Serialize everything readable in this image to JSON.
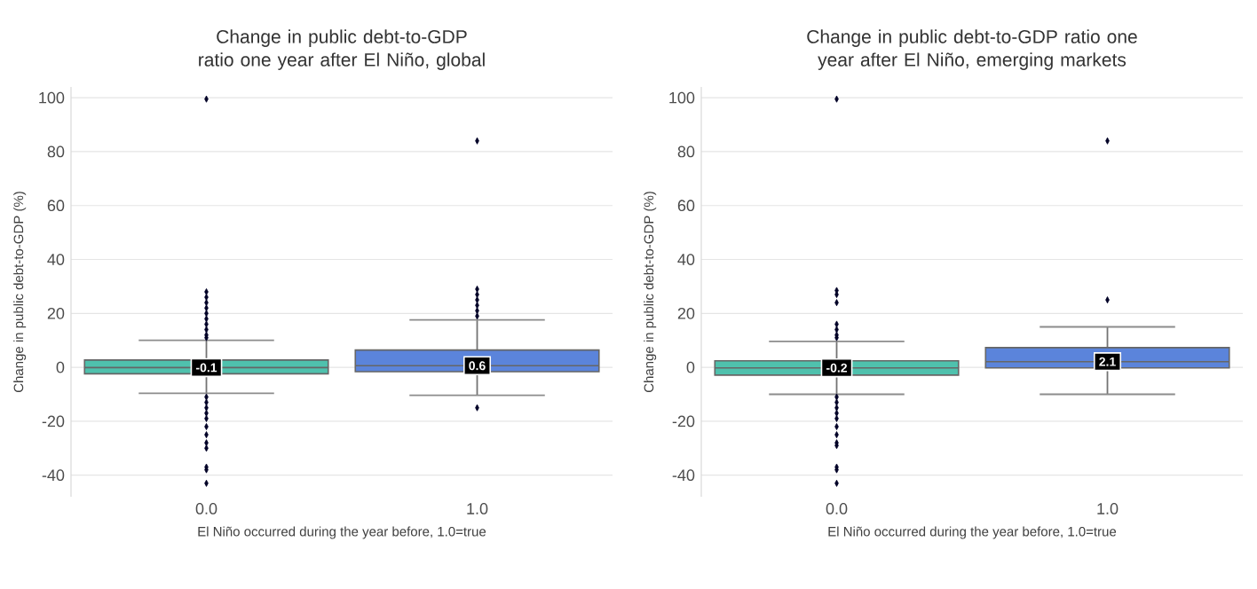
{
  "chart_data": [
    {
      "type": "box",
      "title": "Change in public debt-to-GDP ratio one year after El Niño, global",
      "xlabel": "El Niño occurred during the year before, 1.0=true",
      "ylabel": "Change in public debt-to-GDP (%)",
      "categories": [
        "0.0",
        "1.0"
      ],
      "boxes": [
        {
          "low": -9.6,
          "q1": -2.4,
          "median": -0.1,
          "q3": 2.7,
          "high": 10,
          "outliers": [
            99.5,
            28,
            26,
            24,
            22,
            20,
            18,
            16,
            14,
            12,
            11,
            -11,
            -13,
            -15,
            -17,
            -19,
            -22,
            -25,
            -28,
            -30,
            -37,
            -38,
            -43
          ]
        },
        {
          "low": -10.4,
          "q1": -1.6,
          "median": 0.6,
          "q3": 6.4,
          "high": 17.6,
          "outliers": [
            84,
            29,
            27,
            25,
            23,
            21,
            19,
            -15
          ]
        }
      ],
      "colors": [
        "#4fc1ad",
        "#5b84db"
      ],
      "ylim": [
        -48,
        104
      ],
      "yticks": [
        -40,
        -20,
        0,
        20,
        40,
        60,
        80,
        100
      ],
      "grid": "y",
      "marker": "diamond",
      "annotations": [
        {
          "text": "-0.1",
          "x": "0.0",
          "y": -0.1
        },
        {
          "text": "0.6",
          "x": "1.0",
          "y": 0.6
        }
      ]
    },
    {
      "type": "box",
      "title": "Change in public debt-to-GDP ratio one year after El Niño, emerging markets",
      "xlabel": "El Niño occurred during the year before, 1.0=true",
      "ylabel": "Change in public debt-to-GDP (%)",
      "categories": [
        "0.0",
        "1.0"
      ],
      "boxes": [
        {
          "low": -10,
          "q1": -2.9,
          "median": -0.2,
          "q3": 2.4,
          "high": 9.6,
          "outliers": [
            99.5,
            28.5,
            27,
            24,
            16,
            14,
            12,
            11,
            -11,
            -13,
            -15,
            -17,
            -19,
            -22,
            -25,
            -28,
            -29,
            -37,
            -38,
            -43
          ]
        },
        {
          "low": -10,
          "q1": -0.2,
          "median": 2.1,
          "q3": 7.3,
          "high": 15,
          "outliers": [
            84,
            25
          ]
        }
      ],
      "colors": [
        "#4fc1ad",
        "#5b84db"
      ],
      "ylim": [
        -48,
        104
      ],
      "yticks": [
        -40,
        -20,
        0,
        20,
        40,
        60,
        80,
        100
      ],
      "grid": "y",
      "marker": "diamond",
      "annotations": [
        {
          "text": "-0.2",
          "x": "0.0",
          "y": -0.2
        },
        {
          "text": "2.1",
          "x": "1.0",
          "y": 2.1
        }
      ]
    }
  ]
}
